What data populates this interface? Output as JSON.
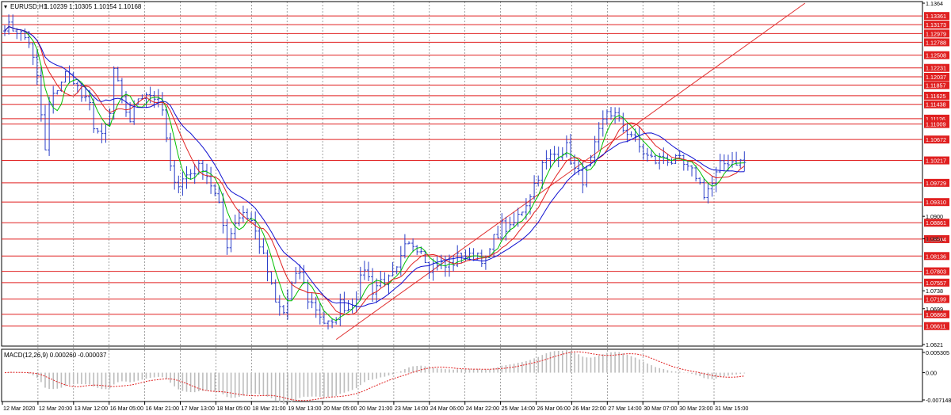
{
  "header": {
    "symbol": "EURUSD,H1",
    "ohlc": "1.10239 1.10305 1.10154 1.10168"
  },
  "macd_label": "MACD(12,26,9) 0.000260 -0.000037",
  "colors": {
    "candle": "#2b3fc8",
    "hline": "#e02020",
    "hline_label_bg": "#e02020",
    "ma_fast": "#00c000",
    "ma_mid": "#e02020",
    "ma_slow": "#1010d0",
    "trendline": "#e03030",
    "grid": "#000000",
    "macd_hist": "#bdbdbd",
    "macd_signal": "#e02020"
  },
  "chart_data": {
    "type": "candlestick",
    "instrument": "EURUSD",
    "timeframe": "H1",
    "ylim": [
      1.0621,
      1.1364
    ],
    "price_ticks": [
      1.1364,
      1.09,
      1.0851,
      1.0738,
      1.0699,
      1.0621
    ],
    "x_labels": [
      "12 Mar 2020",
      "12 Mar 20:00",
      "13 Mar 12:00",
      "16 Mar 05:00",
      "16 Mar 21:00",
      "17 Mar 13:00",
      "18 Mar 05:00",
      "18 Mar 21:00",
      "19 Mar 13:00",
      "20 Mar 05:00",
      "20 Mar 21:00",
      "23 Mar 14:00",
      "24 Mar 06:00",
      "24 Mar 22:00",
      "25 Mar 14:00",
      "26 Mar 06:00",
      "26 Mar 22:00",
      "27 Mar 14:00",
      "30 Mar 07:00",
      "30 Mar 23:00",
      "31 Mar 15:00"
    ],
    "horizontal_levels": [
      1.13361,
      1.13173,
      1.12979,
      1.12788,
      1.12508,
      1.12231,
      1.12037,
      1.11857,
      1.11625,
      1.11438,
      1.11126,
      1.11009,
      1.10672,
      1.10217,
      1.09729,
      1.0931,
      1.08861,
      1.08504,
      1.08136,
      1.07803,
      1.07557,
      1.07199,
      1.06868,
      1.06611
    ],
    "price_path": [
      [
        0,
        1.1316
      ],
      [
        3,
        1.1305
      ],
      [
        6,
        1.128
      ],
      [
        8,
        1.12
      ],
      [
        9,
        1.112
      ],
      [
        10,
        1.104
      ],
      [
        11,
        1.114
      ],
      [
        13,
        1.118
      ],
      [
        15,
        1.121
      ],
      [
        17,
        1.12
      ],
      [
        19,
        1.116
      ],
      [
        21,
        1.114
      ],
      [
        22,
        1.11
      ],
      [
        24,
        1.107
      ],
      [
        26,
        1.112
      ],
      [
        27,
        1.122
      ],
      [
        29,
        1.115
      ],
      [
        31,
        1.111
      ],
      [
        33,
        1.116
      ],
      [
        35,
        1.117
      ],
      [
        37,
        1.116
      ],
      [
        39,
        1.113
      ],
      [
        41,
        1.1
      ],
      [
        43,
        1.097
      ],
      [
        45,
        1.099
      ],
      [
        47,
        1.1
      ],
      [
        49,
        1.101
      ],
      [
        51,
        1.097
      ],
      [
        53,
        1.092
      ],
      [
        55,
        1.084
      ],
      [
        57,
        1.089
      ],
      [
        59,
        1.091
      ],
      [
        61,
        1.089
      ],
      [
        63,
        1.084
      ],
      [
        65,
        1.078
      ],
      [
        67,
        1.071
      ],
      [
        69,
        1.069
      ],
      [
        71,
        1.075
      ],
      [
        73,
        1.078
      ],
      [
        75,
        1.072
      ],
      [
        77,
        1.07
      ],
      [
        79,
        1.067
      ],
      [
        81,
        1.066
      ],
      [
        83,
        1.071
      ],
      [
        85,
        1.07
      ],
      [
        87,
        1.073
      ],
      [
        89,
        1.079
      ],
      [
        91,
        1.074
      ],
      [
        93,
        1.076
      ],
      [
        95,
        1.076
      ],
      [
        97,
        1.078
      ],
      [
        99,
        1.083
      ],
      [
        101,
        1.084
      ],
      [
        103,
        1.083
      ],
      [
        105,
        1.079
      ],
      [
        107,
        1.08
      ],
      [
        109,
        1.079
      ],
      [
        111,
        1.08
      ],
      [
        113,
        1.082
      ],
      [
        115,
        1.081
      ],
      [
        117,
        1.082
      ],
      [
        119,
        1.08
      ],
      [
        121,
        1.085
      ],
      [
        123,
        1.088
      ],
      [
        125,
        1.087
      ],
      [
        127,
        1.09
      ],
      [
        129,
        1.093
      ],
      [
        131,
        1.097
      ],
      [
        133,
        1.101
      ],
      [
        135,
        1.103
      ],
      [
        137,
        1.104
      ],
      [
        139,
        1.105
      ],
      [
        141,
        1.1
      ],
      [
        143,
        1.098
      ],
      [
        145,
        1.102
      ],
      [
        147,
        1.108
      ],
      [
        149,
        1.113
      ],
      [
        151,
        1.112
      ],
      [
        153,
        1.109
      ],
      [
        155,
        1.108
      ],
      [
        157,
        1.105
      ],
      [
        159,
        1.103
      ],
      [
        161,
        1.102
      ],
      [
        163,
        1.103
      ],
      [
        165,
        1.102
      ],
      [
        167,
        1.102
      ],
      [
        169,
        1.1
      ],
      [
        171,
        1.099
      ],
      [
        173,
        1.095
      ],
      [
        175,
        1.097
      ],
      [
        177,
        1.101
      ],
      [
        179,
        1.102
      ],
      [
        181,
        1.102
      ],
      [
        183,
        1.1017
      ]
    ],
    "trendline": [
      [
        82,
        1.0632
      ],
      [
        198,
        1.1364
      ]
    ],
    "macd_ylim": [
      -0.007148,
      0.005305
    ],
    "macd_ticks": [
      0.005305,
      0.0,
      -0.007148
    ]
  }
}
